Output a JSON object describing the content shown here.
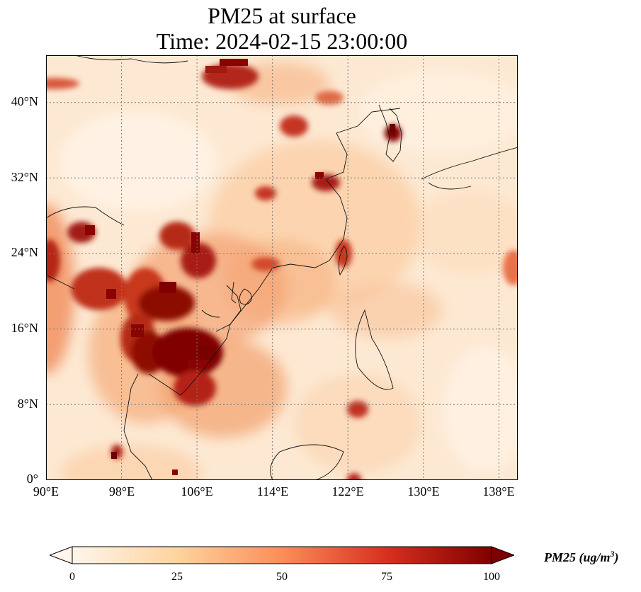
{
  "title_line1": "PM25 at surface",
  "title_line2": "Time: 2024-02-15 23:00:00",
  "lat_ticks": [
    "40°N",
    "32°N",
    "24°N",
    "16°N",
    "8°N",
    "0°"
  ],
  "lon_ticks": [
    "90°E",
    "98°E",
    "106°E",
    "114°E",
    "122°E",
    "130°E",
    "138°E"
  ],
  "colorbar": {
    "ticks": [
      "0",
      "25",
      "50",
      "75",
      "100"
    ],
    "label_main": "PM25 (ug/m",
    "label_sup": "3",
    "label_close": ")",
    "colors": [
      "#fff5eb",
      "#fdd49e",
      "#fc8d59",
      "#d7301f",
      "#7f0000"
    ]
  },
  "map_extent": {
    "lon_min": 90,
    "lon_max": 140,
    "lat_min": 0,
    "lat_max": 45
  }
}
